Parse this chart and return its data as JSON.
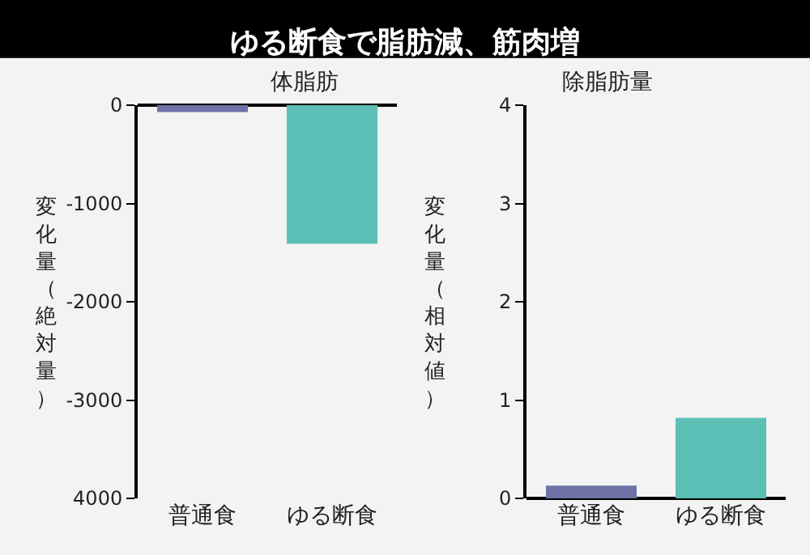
{
  "chart_data": [
    {
      "type": "bar",
      "title": "ゆる断食で脂肪減、筋肉増",
      "subtitle": "体脂肪",
      "ylabel": "変化量（絶対量）",
      "categories": [
        "普通食",
        "ゆる断食"
      ],
      "values": [
        -70,
        -1410
      ],
      "colors": [
        "#6f72a6",
        "#5bbfb5"
      ],
      "ylim": [
        -4000,
        0
      ],
      "yticks": [
        0,
        -1000,
        -2000,
        -3000,
        {
          "value": -4000,
          "label": "4000"
        }
      ],
      "grid": false
    },
    {
      "type": "bar",
      "subtitle": "除脂肪量",
      "ylabel": "変化量（相対値）",
      "categories": [
        "普通食",
        "ゆる断食"
      ],
      "values": [
        0.13,
        0.82
      ],
      "colors": [
        "#6f72a6",
        "#5bbfb5"
      ],
      "ylim": [
        0,
        4
      ],
      "yticks": [
        0,
        1,
        2,
        3,
        4
      ],
      "grid": false
    }
  ]
}
